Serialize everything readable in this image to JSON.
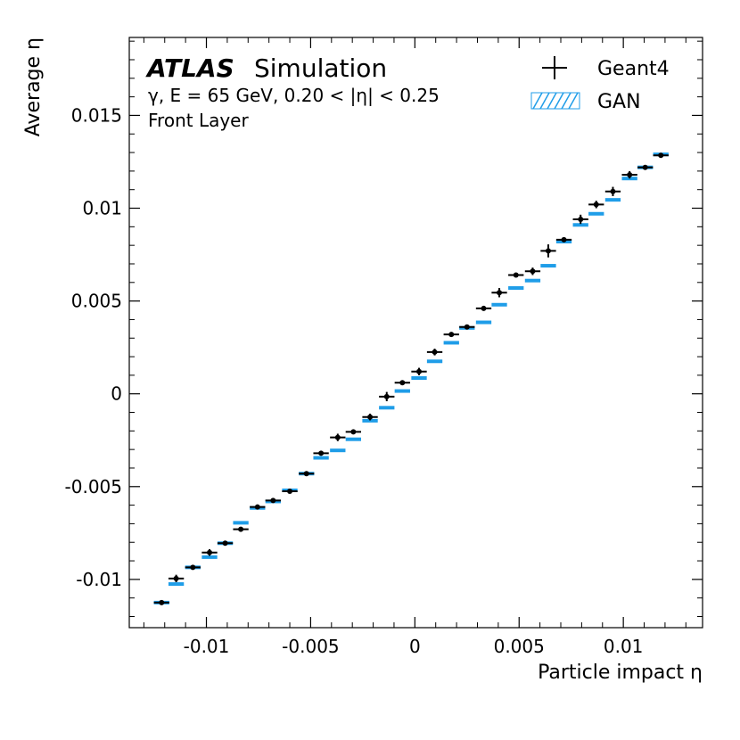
{
  "header": {
    "atlas_label": "ATLAS",
    "simulation_label": "Simulation",
    "process_line": "γ, E = 65 GeV, 0.20 < |η| < 0.25",
    "layer_line": "Front Layer"
  },
  "legend": {
    "geant4_label": "Geant4",
    "gan_label": "GAN"
  },
  "colors": {
    "geant4": "#000000",
    "gan": "#1f9de8"
  },
  "chart_data": {
    "type": "scatter",
    "title": "",
    "xlabel": "Particle impact η",
    "ylabel": "Average η",
    "xlim": [
      -0.0137,
      0.0138
    ],
    "ylim": [
      -0.0126,
      0.0192
    ],
    "x_ticks": [
      -0.01,
      -0.005,
      0,
      0.005,
      0.01
    ],
    "x_tick_labels": [
      "-0.01",
      "-0.005",
      "0",
      "0.005",
      "0.01"
    ],
    "y_ticks": [
      -0.01,
      -0.005,
      0,
      0.005,
      0.01,
      0.015
    ],
    "y_tick_labels": [
      "-0.01",
      "-0.005",
      "0",
      "0.005",
      "0.01",
      "0.015"
    ],
    "x": [
      -0.01215,
      -0.01145,
      -0.01065,
      -0.00985,
      -0.0091,
      -0.00835,
      -0.00755,
      -0.0068,
      -0.006,
      -0.0052,
      -0.0045,
      -0.0037,
      -0.00295,
      -0.00215,
      -0.00135,
      -0.0006,
      0.0002,
      0.00095,
      0.00175,
      0.0025,
      0.0033,
      0.00405,
      0.00485,
      0.00565,
      0.0064,
      0.00715,
      0.00795,
      0.0087,
      0.0095,
      0.0103,
      0.01105,
      0.0118
    ],
    "bin_half_width": 0.00037,
    "series": [
      {
        "name": "Geant4",
        "values": [
          -0.01125,
          -0.00995,
          -0.00935,
          -0.00855,
          -0.00805,
          -0.0073,
          -0.0061,
          -0.00575,
          -0.00525,
          -0.0043,
          -0.0032,
          -0.00235,
          -0.00205,
          -0.00125,
          -0.00015,
          0.0006,
          0.0012,
          0.00225,
          0.0032,
          0.0036,
          0.0046,
          0.00545,
          0.0064,
          0.0066,
          0.0077,
          0.0083,
          0.0094,
          0.0102,
          0.0109,
          0.0118,
          0.0122,
          0.01285
        ],
        "y_err": [
          8e-05,
          0.0002,
          8e-05,
          0.00018,
          8e-05,
          8e-05,
          8e-05,
          8e-05,
          8e-05,
          8e-05,
          0.00012,
          0.0002,
          8e-05,
          0.00018,
          0.00025,
          8e-05,
          0.0002,
          0.00018,
          8e-05,
          8e-05,
          0.00012,
          0.00025,
          0.00012,
          0.0002,
          0.00035,
          8e-05,
          0.00025,
          0.0002,
          0.00025,
          0.0002,
          8e-05,
          8e-05
        ]
      },
      {
        "name": "GAN",
        "values": [
          -0.01125,
          -0.01025,
          -0.00935,
          -0.0088,
          -0.00805,
          -0.00695,
          -0.00615,
          -0.0058,
          -0.0052,
          -0.0043,
          -0.00345,
          -0.00305,
          -0.00245,
          -0.00145,
          -0.00075,
          0.00015,
          0.00085,
          0.00175,
          0.00275,
          0.00355,
          0.00385,
          0.0048,
          0.0057,
          0.0061,
          0.0069,
          0.0082,
          0.0091,
          0.0097,
          0.01045,
          0.0116,
          0.0122,
          0.0129
        ],
        "band_half": 6e-05
      }
    ]
  }
}
